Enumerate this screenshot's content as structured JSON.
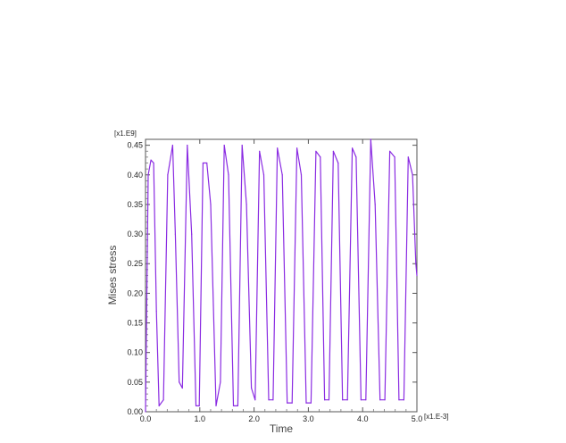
{
  "chart_data": {
    "type": "line",
    "xlabel": "Time",
    "ylabel": "Mises stress",
    "x_multiplier": "[x1.E-3]",
    "y_multiplier": "[x1.E9]",
    "xlim": [
      0.0,
      5.0
    ],
    "ylim": [
      0.0,
      0.46
    ],
    "x_ticks": [
      "0.0",
      "1.0",
      "2.0",
      "3.0",
      "4.0",
      "5.0"
    ],
    "y_ticks": [
      "0.00",
      "0.05",
      "0.10",
      "0.15",
      "0.20",
      "0.25",
      "0.30",
      "0.35",
      "0.40",
      "0.45"
    ],
    "grid": false,
    "legend": "none",
    "line_color": "#8a2be2",
    "series": [
      {
        "x": [
          0.0,
          0.05,
          0.1,
          0.15,
          0.2,
          0.25,
          0.33,
          0.41,
          0.5,
          0.55,
          0.62,
          0.68,
          0.77,
          0.85,
          0.93,
          0.99,
          1.06,
          1.13,
          1.2,
          1.3,
          1.38,
          1.45,
          1.53,
          1.62,
          1.7,
          1.78,
          1.86,
          1.95,
          2.02,
          2.1,
          2.18,
          2.27,
          2.35,
          2.43,
          2.52,
          2.61,
          2.7,
          2.79,
          2.87,
          2.96,
          3.05,
          3.14,
          3.22,
          3.3,
          3.38,
          3.46,
          3.55,
          3.63,
          3.72,
          3.81,
          3.88,
          3.97,
          4.06,
          4.15,
          4.23,
          4.32,
          4.41,
          4.5,
          4.59,
          4.67,
          4.76,
          4.84,
          4.92,
          4.98,
          5.0
        ],
        "y": [
          0.0,
          0.4,
          0.425,
          0.42,
          0.17,
          0.01,
          0.02,
          0.4,
          0.45,
          0.3,
          0.05,
          0.04,
          0.45,
          0.3,
          0.01,
          0.01,
          0.42,
          0.42,
          0.35,
          0.01,
          0.05,
          0.45,
          0.4,
          0.01,
          0.01,
          0.45,
          0.35,
          0.04,
          0.02,
          0.44,
          0.4,
          0.02,
          0.02,
          0.445,
          0.4,
          0.015,
          0.015,
          0.445,
          0.4,
          0.015,
          0.015,
          0.44,
          0.43,
          0.02,
          0.02,
          0.44,
          0.42,
          0.02,
          0.02,
          0.445,
          0.43,
          0.02,
          0.02,
          0.46,
          0.35,
          0.02,
          0.02,
          0.44,
          0.43,
          0.02,
          0.02,
          0.43,
          0.4,
          0.25,
          0.23
        ]
      }
    ]
  }
}
